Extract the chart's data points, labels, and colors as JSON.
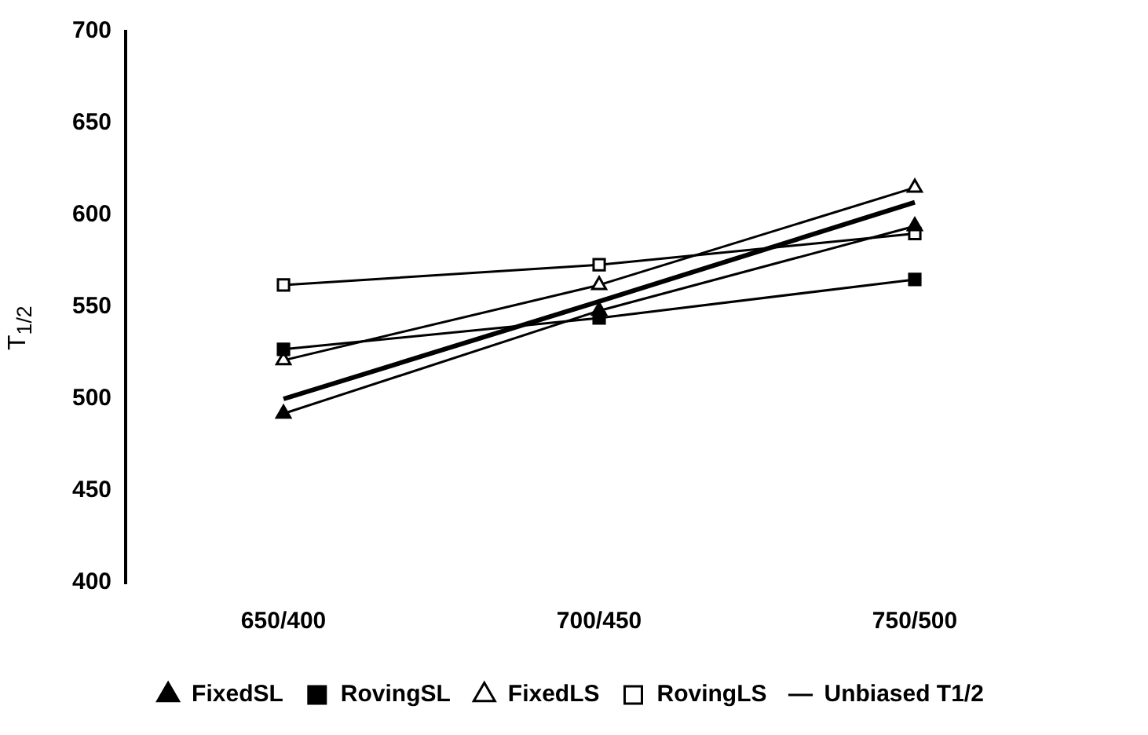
{
  "chart_data": {
    "type": "line",
    "ylabel": "T$_{1/2}$",
    "categories": [
      "650/400",
      "700/450",
      "750/500"
    ],
    "ylim": [
      400,
      700
    ],
    "yticks": [
      400,
      450,
      500,
      550,
      600,
      650,
      700
    ],
    "grid": false,
    "legend": "bottom",
    "line_style": "solid",
    "series": [
      {
        "name": "FixedSL",
        "color": "#000000",
        "marker": "triangle",
        "values": [
          492,
          548,
          594
        ]
      },
      {
        "name": "RovingSL",
        "color": "#000000",
        "marker": "square",
        "values": [
          527,
          544,
          565
        ]
      },
      {
        "name": "FixedLS",
        "color": "#000000",
        "marker": "triangle",
        "values": [
          521,
          562,
          615
        ]
      },
      {
        "name": "RovingLS",
        "color": "#000000",
        "marker": "square",
        "values": [
          562,
          573,
          590
        ]
      },
      {
        "name": "Unbiased T1/2",
        "color": "#000000",
        "marker": "none",
        "values": [
          500,
          553,
          607
        ]
      }
    ]
  }
}
